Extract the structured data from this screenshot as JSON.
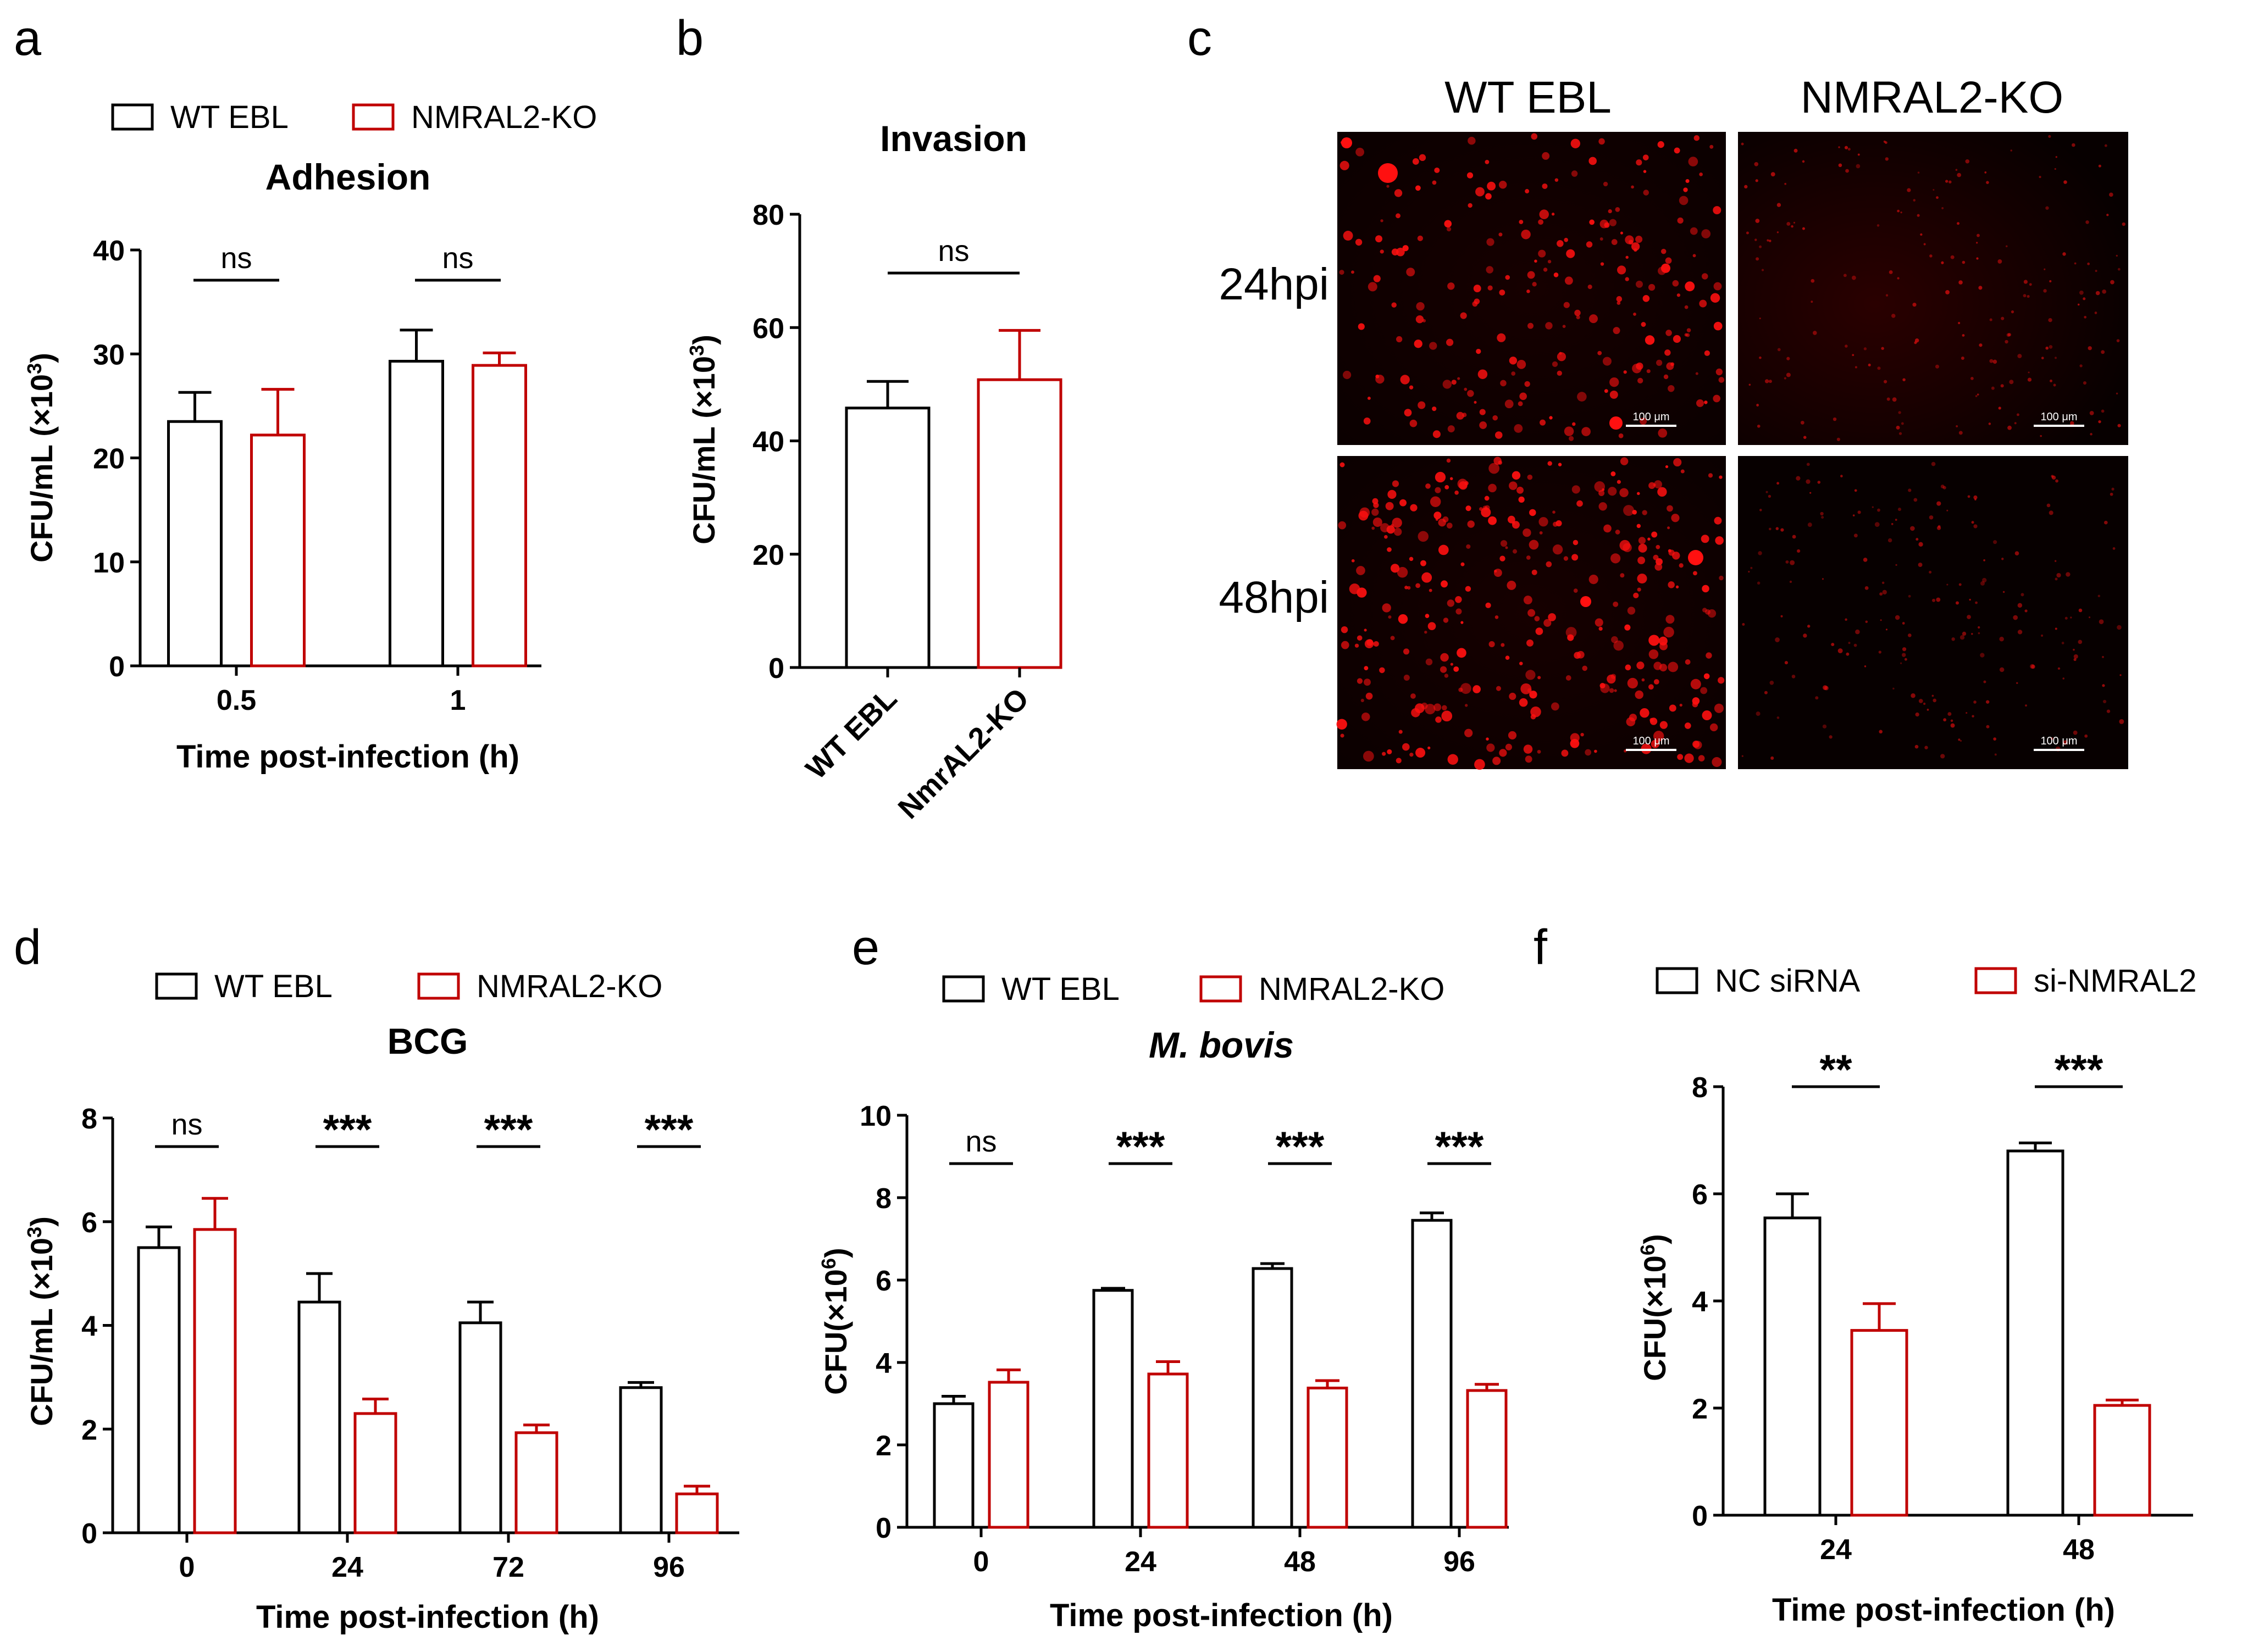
{
  "colors": {
    "wt": "#000000",
    "ko": "#c00000",
    "micro_bg": "#0a0000",
    "cell": "#ff1010"
  },
  "panels": {
    "a": "a",
    "b": "b",
    "c": "c",
    "d": "d",
    "e": "e",
    "f": "f"
  },
  "legends": {
    "wt": "WT EBL",
    "ko": "NMRAL2-KO",
    "nc": "NC siRNA",
    "si": "si-NMRAL2"
  },
  "micrographs": {
    "col_headers": [
      "WT EBL",
      "NMRAL2-KO"
    ],
    "row_labels": [
      "24hpi",
      "48hpi"
    ],
    "scale_bar": "100 μm"
  },
  "chart_data": [
    {
      "panel": "a",
      "type": "bar",
      "title": "Adhesion",
      "xlabel": "Time post-infection (h)",
      "ylabel": "CFU/mL (×10³)",
      "ylim": [
        0,
        40
      ],
      "yticks": [
        0,
        10,
        20,
        30,
        40
      ],
      "categories": [
        "0.5",
        "1"
      ],
      "series": [
        {
          "name": "WT EBL",
          "values": [
            23.5,
            29.3
          ],
          "errors": [
            2.8,
            3.0
          ]
        },
        {
          "name": "NMRAL2-KO",
          "values": [
            22.2,
            28.9
          ],
          "errors": [
            4.4,
            1.2
          ]
        }
      ],
      "significance": [
        "ns",
        "ns"
      ]
    },
    {
      "panel": "b",
      "type": "bar",
      "title": "Invasion",
      "xlabel": "",
      "ylabel": "CFU/mL (×10³)",
      "ylim": [
        0,
        80
      ],
      "yticks": [
        0,
        20,
        40,
        60,
        80
      ],
      "categories": [
        "WT EBL",
        "NmrAL2-KO"
      ],
      "series": [
        {
          "name": "bars",
          "values": [
            45.8,
            50.8
          ],
          "errors": [
            4.7,
            8.7
          ]
        }
      ],
      "significance": [
        "ns"
      ]
    },
    {
      "panel": "d",
      "type": "bar",
      "title": "BCG",
      "xlabel": "Time post-infection (h)",
      "ylabel": "CFU/mL (×10³)",
      "ylim": [
        0,
        8
      ],
      "yticks": [
        0,
        2,
        4,
        6,
        8
      ],
      "categories": [
        "0",
        "24",
        "72",
        "96"
      ],
      "series": [
        {
          "name": "WT EBL",
          "values": [
            5.5,
            4.45,
            4.05,
            2.8
          ],
          "errors": [
            0.4,
            0.55,
            0.4,
            0.1
          ]
        },
        {
          "name": "NMRAL2-KO",
          "values": [
            5.85,
            2.3,
            1.93,
            0.75
          ],
          "errors": [
            0.6,
            0.28,
            0.15,
            0.15
          ]
        }
      ],
      "significance": [
        "ns",
        "***",
        "***",
        "***"
      ]
    },
    {
      "panel": "e",
      "type": "bar",
      "title": "M. bovis",
      "xlabel": "Time post-infection (h)",
      "ylabel": "CFU(×10⁶)",
      "ylim": [
        0,
        10
      ],
      "yticks": [
        0,
        2,
        4,
        6,
        8,
        10
      ],
      "categories": [
        "0",
        "24",
        "48",
        "96"
      ],
      "series": [
        {
          "name": "WT EBL",
          "values": [
            3.0,
            5.75,
            6.28,
            7.45
          ],
          "errors": [
            0.18,
            0.05,
            0.12,
            0.18
          ]
        },
        {
          "name": "NMRAL2-KO",
          "values": [
            3.52,
            3.72,
            3.38,
            3.32
          ],
          "errors": [
            0.3,
            0.3,
            0.18,
            0.15
          ]
        }
      ],
      "significance": [
        "ns",
        "***",
        "***",
        "***"
      ]
    },
    {
      "panel": "f",
      "type": "bar",
      "title": "",
      "xlabel": "Time post-infection (h)",
      "ylabel": "CFU(×10⁶)",
      "ylim": [
        0,
        8
      ],
      "yticks": [
        0,
        2,
        4,
        6,
        8
      ],
      "categories": [
        "24",
        "48"
      ],
      "series": [
        {
          "name": "NC siRNA",
          "values": [
            5.55,
            6.8
          ],
          "errors": [
            0.45,
            0.15
          ]
        },
        {
          "name": "si-NMRAL2",
          "values": [
            3.45,
            2.05
          ],
          "errors": [
            0.5,
            0.1
          ]
        }
      ],
      "significance": [
        "**",
        "***"
      ]
    }
  ]
}
